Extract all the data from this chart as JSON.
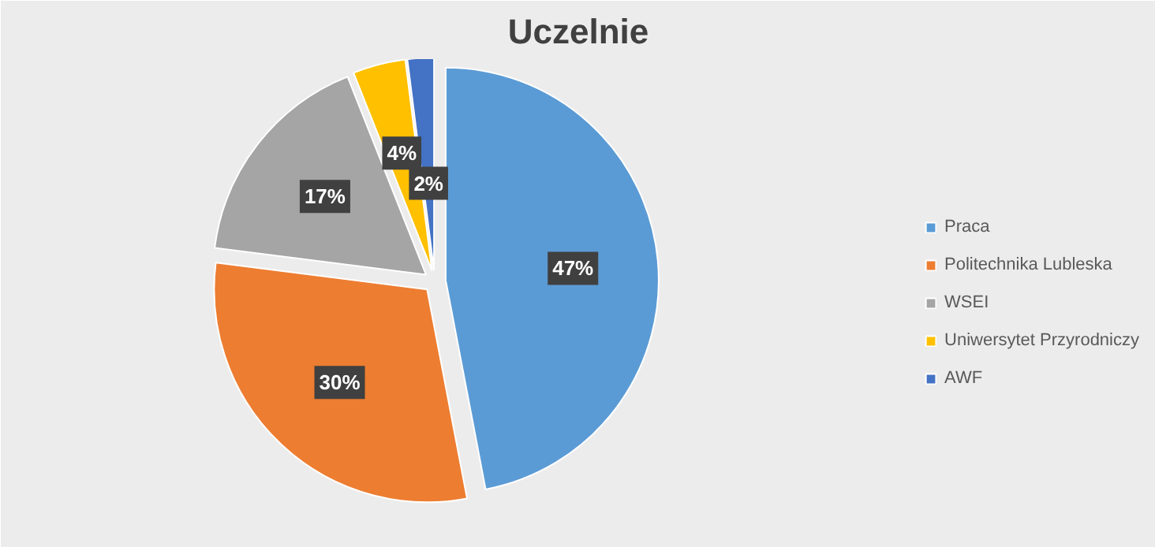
{
  "chart_data": {
    "type": "pie",
    "title": "Uczelnie",
    "categories": [
      "Praca",
      "Politechnika Lubleska",
      "WSEI",
      "Uniwersytet Przyrodniczy",
      "AWF"
    ],
    "values": [
      47,
      30,
      17,
      4,
      2
    ],
    "colors": [
      "#5b9bd5",
      "#ed7d31",
      "#a5a5a5",
      "#ffc000",
      "#4472c4"
    ],
    "value_labels": [
      "47%",
      "30%",
      "17%",
      "4%",
      "2%"
    ],
    "legend": "right"
  }
}
